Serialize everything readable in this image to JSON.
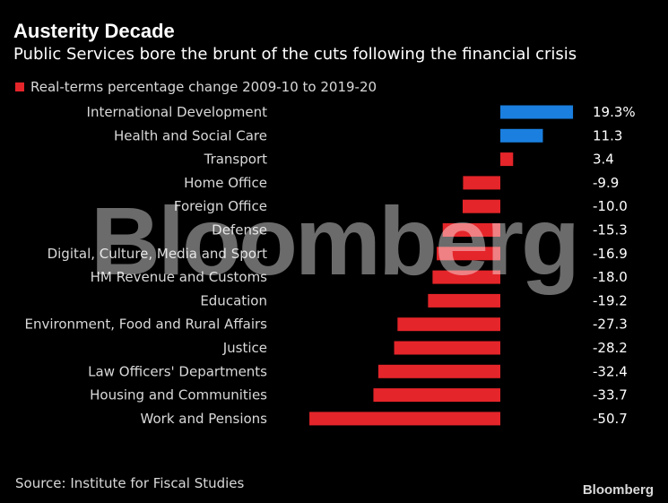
{
  "header": {
    "title": "Austerity Decade",
    "subtitle": "Public Services bore the brunt of the cuts following the financial crisis"
  },
  "footer": {
    "source": "Source: Institute for Fiscal Studies",
    "brand": "Bloomberg"
  },
  "watermark": "Bloomberg",
  "colors": {
    "positive": "#1a7fdf",
    "negative": "#e4252a",
    "background": "#000000"
  },
  "chart_data": {
    "type": "bar",
    "orientation": "horizontal",
    "title": "Austerity Decade",
    "subtitle": "Public Services bore the brunt of the cuts following the financial crisis",
    "legend": [
      {
        "name": "Real-terms percentage change 2009-10 to 2019-20",
        "color": "#e4252a"
      }
    ],
    "legend_position": "top-left",
    "grid": false,
    "xlim": [
      -52,
      20
    ],
    "categories": [
      "International Development",
      "Health and Social Care",
      "Transport",
      "Home Office",
      "Foreign Office",
      "Defense",
      "Digital, Culture, Media and Sport",
      "HM Revenue and Customs",
      "Education",
      "Environment, Food and Rural Affairs",
      "Justice",
      "Law Officers' Departments",
      "Housing and Communities",
      "Work and Pensions"
    ],
    "values": [
      19.3,
      11.3,
      3.4,
      -9.9,
      -10.0,
      -15.3,
      -16.9,
      -18.0,
      -19.2,
      -27.3,
      -28.2,
      -32.4,
      -33.7,
      -50.7
    ],
    "value_labels": [
      "19.3%",
      "11.3",
      "3.4",
      "-9.9",
      "-10.0",
      "-15.3",
      "-16.9",
      "-18.0",
      "-19.2",
      "-27.3",
      "-28.2",
      "-32.4",
      "-33.7",
      "-50.7"
    ],
    "bar_colors": [
      "#1a7fdf",
      "#1a7fdf",
      "#e4252a",
      "#e4252a",
      "#e4252a",
      "#e4252a",
      "#e4252a",
      "#e4252a",
      "#e4252a",
      "#e4252a",
      "#e4252a",
      "#e4252a",
      "#e4252a",
      "#e4252a"
    ]
  }
}
